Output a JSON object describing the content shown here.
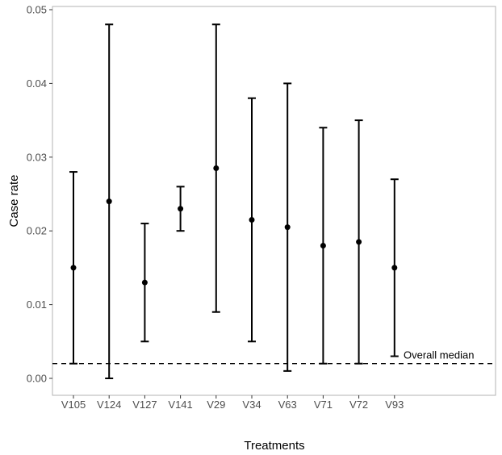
{
  "chart_data": {
    "type": "errorbar",
    "xlabel": "Treatments",
    "ylabel": "Case rate",
    "ylim": [
      0,
      0.05
    ],
    "yticks": [
      "0.00",
      "0.01",
      "0.02",
      "0.03",
      "0.04",
      "0.05"
    ],
    "ytick_values": [
      0,
      0.01,
      0.02,
      0.03,
      0.04,
      0.05
    ],
    "categories": [
      "V105",
      "V124",
      "V127",
      "V141",
      "V29",
      "V34",
      "V63",
      "V71",
      "V72",
      "V93"
    ],
    "values": [
      0.015,
      0.024,
      0.013,
      0.023,
      0.0285,
      0.0215,
      0.0205,
      0.018,
      0.0185,
      0.015
    ],
    "lower": [
      0.002,
      0.0,
      0.005,
      0.02,
      0.009,
      0.005,
      0.001,
      0.002,
      0.002,
      0.003
    ],
    "upper": [
      0.028,
      0.048,
      0.021,
      0.026,
      0.048,
      0.038,
      0.04,
      0.034,
      0.035,
      0.027
    ],
    "reference_line": {
      "value": 0.002,
      "label": "Overall median",
      "style": "dashed"
    },
    "grid": false,
    "colors": {
      "marks": "#000000",
      "axis_text": "#4d4d4d",
      "panel_border": "#b3b3b3"
    }
  }
}
